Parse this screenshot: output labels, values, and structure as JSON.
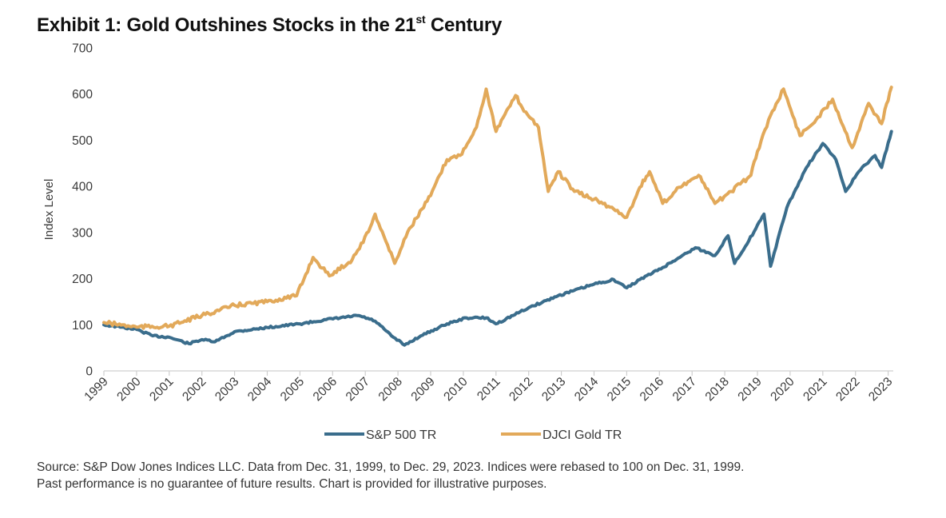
{
  "title": {
    "main": "Exhibit 1: Gold Outshines Stocks in the 21",
    "sup": "st",
    "tail": " Century"
  },
  "footer": {
    "line1": "Source: S&P Dow Jones Indices LLC. Data from Dec. 31, 1999, to Dec. 29, 2023. Indices were rebased to 100 on Dec. 31, 1999.",
    "line2": "Past performance is no guarantee of future results. Chart is provided for illustrative purposes."
  },
  "chart_data": {
    "type": "line",
    "title": "Exhibit 1: Gold Outshines Stocks in the 21st Century",
    "xlabel": "",
    "ylabel": "Index Level",
    "ylim": [
      0,
      700
    ],
    "yticks": [
      0,
      100,
      200,
      300,
      400,
      500,
      600,
      700
    ],
    "xlim": [
      1999,
      2023.1
    ],
    "xticks": [
      1999,
      2000,
      2001,
      2002,
      2003,
      2004,
      2005,
      2006,
      2007,
      2008,
      2009,
      2010,
      2011,
      2012,
      2013,
      2014,
      2015,
      2016,
      2017,
      2018,
      2019,
      2020,
      2021,
      2022,
      2023
    ],
    "xtick_labels": [
      "1999",
      "2000",
      "2001",
      "2002",
      "2003",
      "2004",
      "2005",
      "2006",
      "2007",
      "2008",
      "2009",
      "2010",
      "2011",
      "2012",
      "2013",
      "2014",
      "2015",
      "2016",
      "2017",
      "2018",
      "2019",
      "2020",
      "2021",
      "2022",
      "2023"
    ],
    "grid": false,
    "legend_position": "bottom-center",
    "series": [
      {
        "name": "S&P 500 TR",
        "color": "#3a6d8c",
        "x": [
          1999.0,
          1999.5,
          2000.0,
          2000.5,
          2001.0,
          2001.6,
          2002.0,
          2002.4,
          2003.0,
          2004.0,
          2005.0,
          2005.8,
          2006.8,
          2007.3,
          2007.8,
          2008.2,
          2008.7,
          2009.5,
          2010.1,
          2010.7,
          2011.0,
          2012.0,
          2012.9,
          2014.0,
          2014.6,
          2015.0,
          2015.4,
          2016.1,
          2017.1,
          2017.7,
          2018.1,
          2018.3,
          2018.9,
          2019.2,
          2019.4,
          2019.9,
          2020.5,
          2021.0,
          2021.4,
          2021.7,
          2022.1,
          2022.6,
          2022.8,
          2023.1
        ],
        "values": [
          100,
          95,
          90,
          76,
          73,
          59,
          68,
          63,
          85,
          94,
          102,
          111,
          120,
          108,
          76,
          56,
          76,
          102,
          115,
          115,
          102,
          137,
          163,
          188,
          198,
          180,
          198,
          224,
          267,
          250,
          293,
          233,
          302,
          340,
          227,
          354,
          441,
          493,
          458,
          389,
          432,
          467,
          441,
          519
        ]
      },
      {
        "name": "DJCI Gold TR",
        "color": "#e2a95a",
        "x": [
          1999.0,
          2000.0,
          2001.0,
          2002.0,
          2003.0,
          2004.0,
          2004.9,
          2005.4,
          2005.9,
          2006.6,
          2007.1,
          2007.3,
          2007.9,
          2008.3,
          2009.0,
          2009.5,
          2009.9,
          2010.4,
          2010.7,
          2011.0,
          2011.6,
          2011.8,
          2012.3,
          2012.6,
          2012.9,
          2013.4,
          2014.0,
          2014.6,
          2015.0,
          2015.4,
          2015.7,
          2016.1,
          2016.6,
          2017.2,
          2017.7,
          2018.2,
          2018.8,
          2019.0,
          2019.4,
          2019.8,
          2020.3,
          2020.8,
          2021.3,
          2021.9,
          2022.4,
          2022.8,
          2023.1
        ],
        "values": [
          105,
          95,
          97,
          120,
          142,
          150,
          163,
          246,
          206,
          241,
          302,
          340,
          233,
          302,
          380,
          458,
          467,
          528,
          611,
          519,
          597,
          571,
          528,
          389,
          432,
          389,
          372,
          351,
          333,
          398,
          432,
          363,
          398,
          424,
          363,
          389,
          424,
          476,
          554,
          611,
          510,
          545,
          589,
          484,
          580,
          536,
          615
        ]
      }
    ]
  }
}
